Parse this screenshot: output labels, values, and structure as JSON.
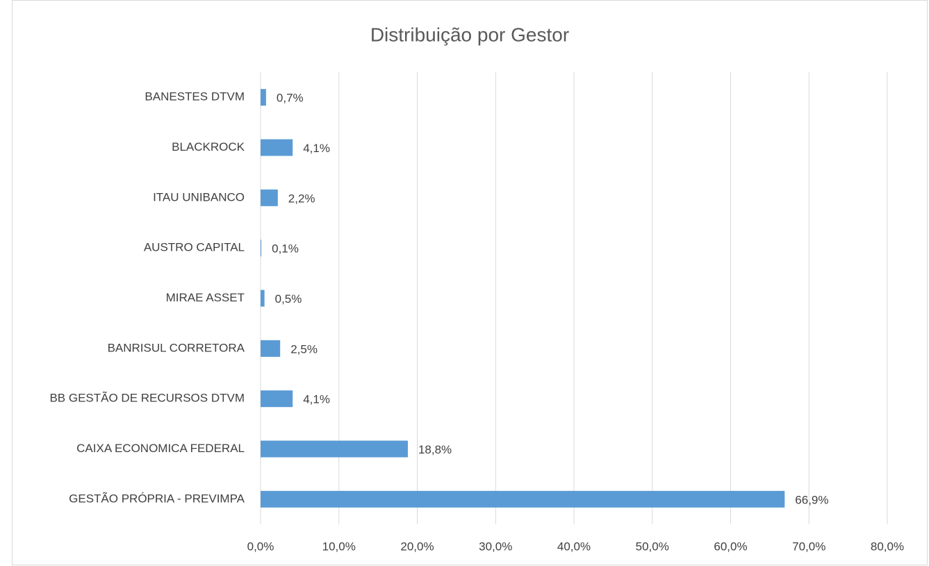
{
  "chart_data": {
    "type": "hbar",
    "title": "Distribuição por Gestor",
    "categories": [
      "BANESTES DTVM",
      "BLACKROCK",
      "ITAU UNIBANCO",
      "AUSTRO CAPITAL",
      "MIRAE ASSET",
      "BANRISUL CORRETORA",
      "BB GESTÃO DE RECURSOS DTVM",
      "CAIXA ECONOMICA FEDERAL",
      "GESTÃO PRÓPRIA - PREVIMPA"
    ],
    "values": [
      0.7,
      4.1,
      2.2,
      0.1,
      0.5,
      2.5,
      4.1,
      18.8,
      66.9
    ],
    "value_labels": [
      "0,7%",
      "4,1%",
      "2,2%",
      "0,1%",
      "0,5%",
      "2,5%",
      "4,1%",
      "18,8%",
      "66,9%"
    ],
    "color": "#5b9bd5",
    "xlim": [
      0,
      80
    ],
    "xticks": [
      {
        "value": 0,
        "label": "0,0%"
      },
      {
        "value": 10,
        "label": "10,0%"
      },
      {
        "value": 20,
        "label": "20,0%"
      },
      {
        "value": 30,
        "label": "30,0%"
      },
      {
        "value": 40,
        "label": "40,0%"
      },
      {
        "value": 50,
        "label": "50,0%"
      },
      {
        "value": 60,
        "label": "60,0%"
      },
      {
        "value": 70,
        "label": "70,0%"
      },
      {
        "value": 80,
        "label": "80,0%"
      }
    ],
    "grid": true
  }
}
